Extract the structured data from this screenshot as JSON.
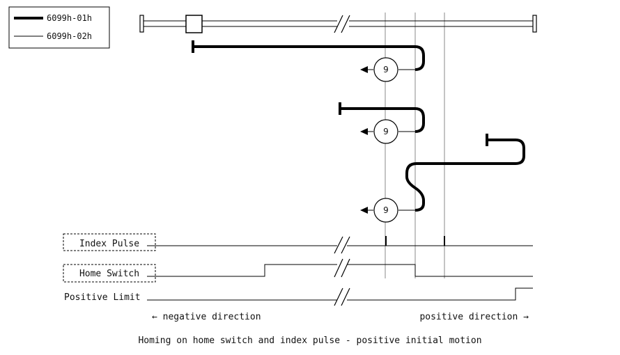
{
  "legend": {
    "items": [
      {
        "label": "6099h-01h",
        "style": "thick"
      },
      {
        "label": "6099h-02h",
        "style": "thin"
      }
    ]
  },
  "signals": {
    "index_pulse": "Index Pulse",
    "home_switch": "Home Switch",
    "positive_limit": "Positive Limit"
  },
  "directions": {
    "negative": "← negative direction",
    "positive": "positive direction →"
  },
  "caption": "Homing on home switch and index pulse - positive initial motion",
  "markers": [
    "9",
    "9",
    "9"
  ],
  "colors": {
    "line": "#000000",
    "guide": "#888888",
    "background": "#ffffff"
  }
}
